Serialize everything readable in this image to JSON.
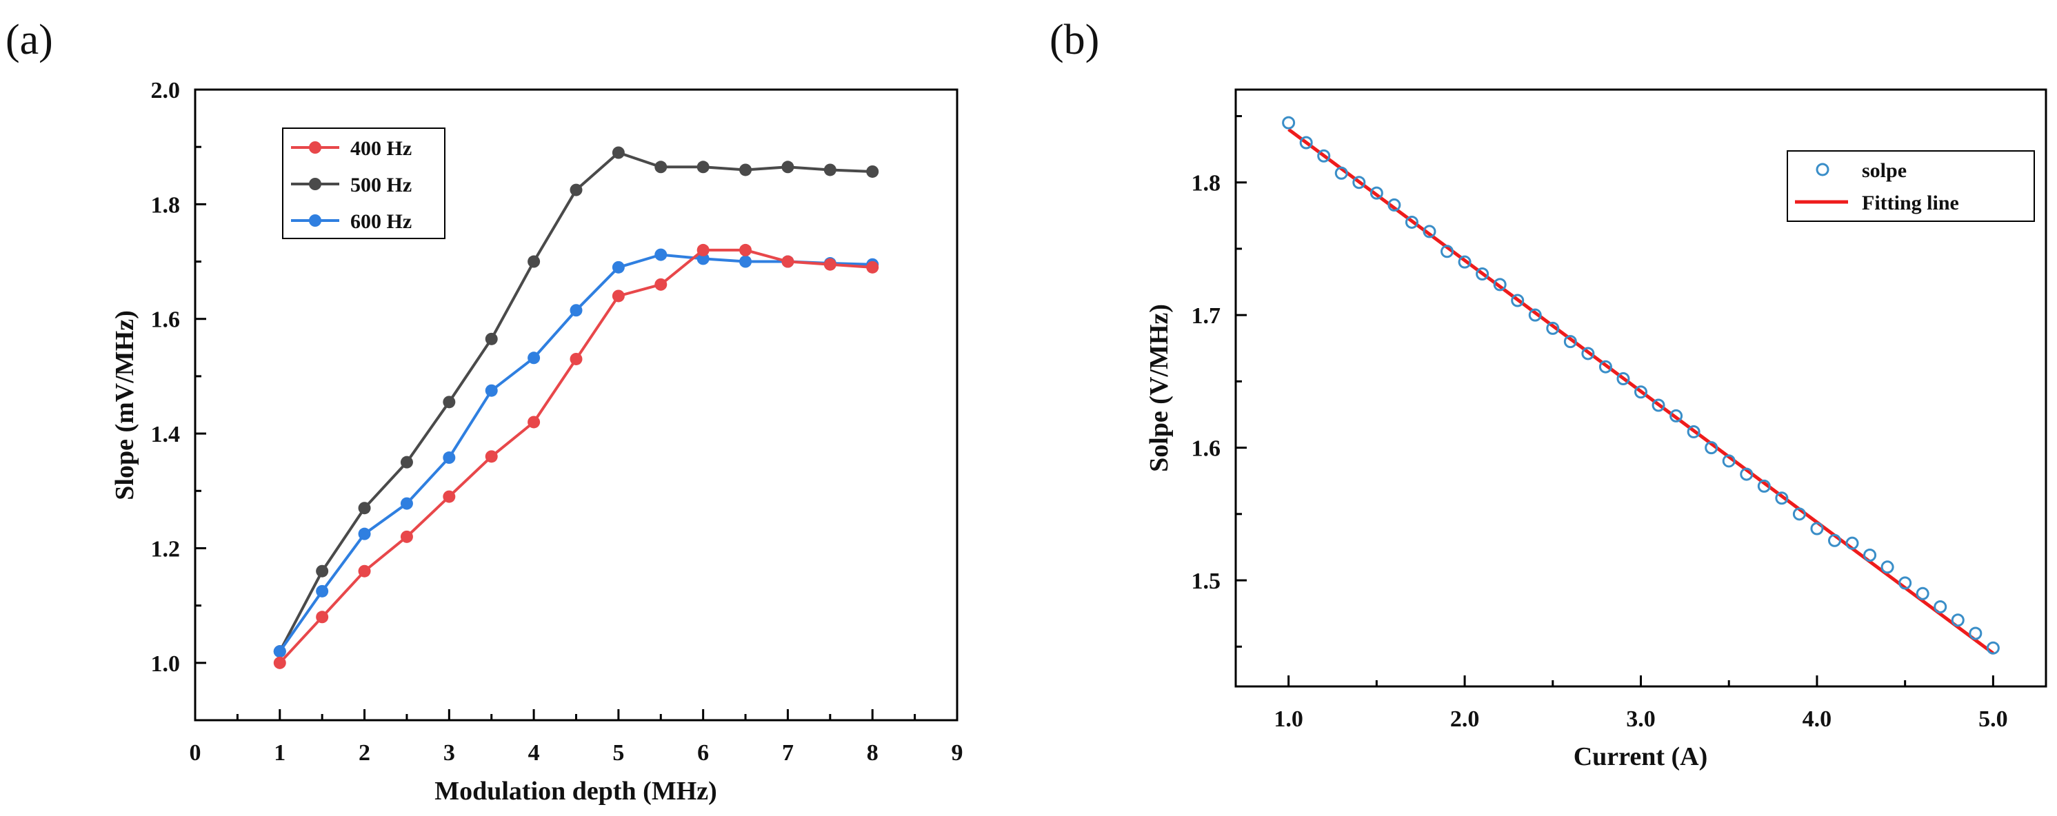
{
  "chart_data": [
    {
      "panel_label": "(a)",
      "type": "line",
      "title": "",
      "xlabel": "Modulation depth (MHz)",
      "ylabel": "Slope (mV/MHz)",
      "xlim": [
        0,
        9
      ],
      "ylim": [
        0.9,
        2.0
      ],
      "xticks": [
        0,
        1,
        2,
        3,
        4,
        5,
        6,
        7,
        8,
        9
      ],
      "xtick_labels": [
        "0",
        "1",
        "2",
        "3",
        "4",
        "5",
        "6",
        "7",
        "8",
        "9"
      ],
      "yticks": [
        1.0,
        1.2,
        1.4,
        1.6,
        1.8,
        2.0
      ],
      "ytick_labels": [
        "1.0",
        "1.2",
        "1.4",
        "1.6",
        "1.8",
        "2.0"
      ],
      "legend_position": "top-left",
      "x": [
        1,
        1.5,
        2,
        2.5,
        3,
        3.5,
        4,
        4.5,
        5,
        5.5,
        6,
        6.5,
        7,
        7.5,
        8
      ],
      "series": [
        {
          "name": "400 Hz",
          "color": "#e8474a",
          "marker": "filled-circle",
          "values": [
            1.0,
            1.08,
            1.16,
            1.22,
            1.29,
            1.36,
            1.42,
            1.53,
            1.64,
            1.66,
            1.72,
            1.72,
            1.7,
            1.695,
            1.69
          ]
        },
        {
          "name": "500 Hz",
          "color": "#4a4a4a",
          "marker": "filled-circle",
          "values": [
            1.02,
            1.16,
            1.27,
            1.35,
            1.455,
            1.565,
            1.7,
            1.825,
            1.89,
            1.865,
            1.865,
            1.86,
            1.865,
            1.86,
            1.857
          ]
        },
        {
          "name": "600 Hz",
          "color": "#2f7fe0",
          "marker": "filled-circle",
          "values": [
            1.02,
            1.125,
            1.225,
            1.278,
            1.358,
            1.475,
            1.532,
            1.615,
            1.69,
            1.712,
            1.705,
            1.7,
            1.7,
            1.697,
            1.695
          ]
        }
      ]
    },
    {
      "panel_label": "(b)",
      "type": "scatter",
      "title": "",
      "xlabel": "Current (A)",
      "ylabel": "Solpe (V/MHz)",
      "xlim": [
        0.7,
        5.3
      ],
      "ylim": [
        1.42,
        1.87
      ],
      "xticks": [
        1.0,
        2.0,
        3.0,
        4.0,
        5.0
      ],
      "xtick_labels": [
        "1.0",
        "2.0",
        "3.0",
        "4.0",
        "5.0"
      ],
      "yticks": [
        1.5,
        1.6,
        1.7,
        1.8
      ],
      "ytick_labels": [
        "1.5",
        "1.6",
        "1.7",
        "1.8"
      ],
      "legend_position": "top-right",
      "series": [
        {
          "name": "solpe",
          "kind": "scatter",
          "marker": "open-circle",
          "color": "#3a8ec8",
          "x": [
            1.0,
            1.1,
            1.2,
            1.3,
            1.4,
            1.5,
            1.6,
            1.7,
            1.8,
            1.9,
            2.0,
            2.1,
            2.2,
            2.3,
            2.4,
            2.5,
            2.6,
            2.7,
            2.8,
            2.9,
            3.0,
            3.1,
            3.2,
            3.3,
            3.4,
            3.5,
            3.6,
            3.7,
            3.8,
            3.9,
            4.0,
            4.1,
            4.2,
            4.3,
            4.4,
            4.5,
            4.6,
            4.7,
            4.8,
            4.9,
            5.0
          ],
          "y": [
            1.845,
            1.83,
            1.82,
            1.807,
            1.8,
            1.792,
            1.783,
            1.77,
            1.763,
            1.748,
            1.74,
            1.731,
            1.723,
            1.711,
            1.7,
            1.69,
            1.68,
            1.671,
            1.661,
            1.652,
            1.642,
            1.632,
            1.624,
            1.612,
            1.6,
            1.59,
            1.58,
            1.571,
            1.562,
            1.55,
            1.539,
            1.53,
            1.528,
            1.519,
            1.51,
            1.498,
            1.49,
            1.48,
            1.47,
            1.46,
            1.449
          ]
        },
        {
          "name": "Fitting line",
          "kind": "line",
          "color": "#ee1c1c",
          "x": [
            1.0,
            5.0
          ],
          "y": [
            1.84,
            1.445
          ]
        }
      ]
    }
  ]
}
